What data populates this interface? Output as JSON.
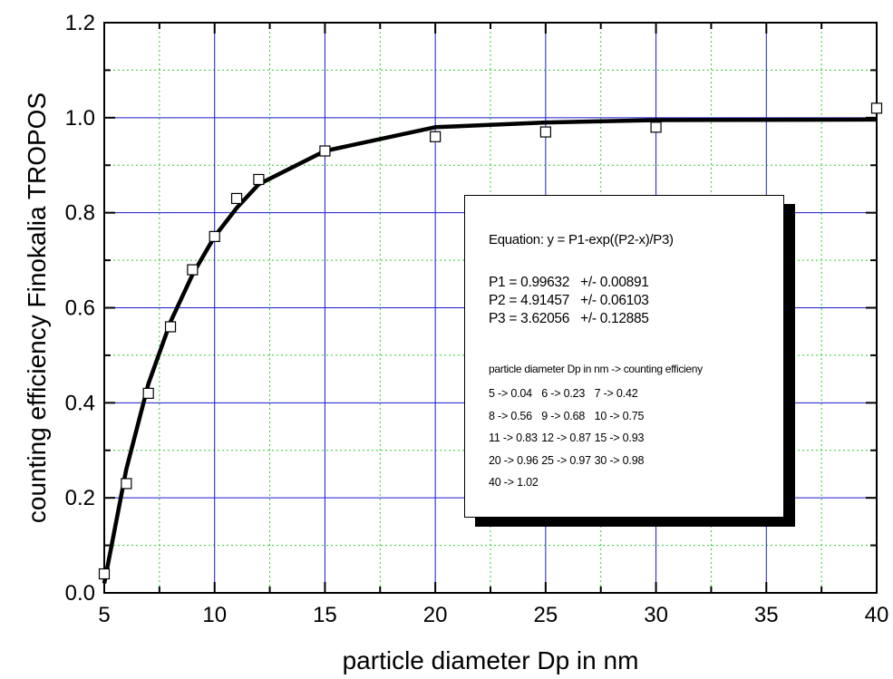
{
  "chart_data": {
    "type": "scatter",
    "xlabel": "particle diameter Dp in nm",
    "ylabel": "counting efficiency Finokalia TROPOS",
    "xlim": [
      5,
      40
    ],
    "ylim": [
      0.0,
      1.2
    ],
    "x_ticks": [
      "5",
      "10",
      "15",
      "20",
      "25",
      "30",
      "35",
      "40"
    ],
    "y_ticks": [
      "0.0",
      "0.2",
      "0.4",
      "0.6",
      "0.8",
      "1.0",
      "1.2"
    ],
    "grid": true,
    "series": [
      {
        "kind": "points",
        "marker": "open-square",
        "x": [
          5,
          6,
          7,
          8,
          9,
          10,
          11,
          12,
          15,
          20,
          25,
          30,
          40
        ],
        "y": [
          0.04,
          0.23,
          0.42,
          0.56,
          0.68,
          0.75,
          0.83,
          0.87,
          0.93,
          0.96,
          0.97,
          0.98,
          1.02
        ]
      },
      {
        "kind": "fit-line",
        "x": [
          5,
          6,
          7,
          8,
          9,
          10,
          11,
          12,
          15,
          20,
          25,
          30,
          40
        ],
        "y": [
          0.02,
          0.26,
          0.44,
          0.57,
          0.67,
          0.75,
          0.81,
          0.86,
          0.93,
          0.98,
          0.99,
          0.995,
          0.996
        ]
      }
    ],
    "annotation": {
      "equation": "Equation: y = P1-exp((P2-x)/P3)",
      "params": [
        "P1 = 0.99632   +/- 0.00891",
        "P2 = 4.91457   +/- 0.06103",
        "P3 = 3.62056   +/- 0.12885"
      ],
      "table_title": "particle diameter Dp in nm -> counting efficieny",
      "table_rows": [
        [
          "5  -> 0.04",
          "6  -> 0.23",
          "7  -> 0.42"
        ],
        [
          "8  -> 0.56",
          "9  -> 0.68",
          "10 -> 0.75"
        ],
        [
          "11 -> 0.83",
          "12 -> 0.87",
          "15 -> 0.93"
        ],
        [
          "20 -> 0.96",
          "25 -> 0.97",
          "30 -> 0.98"
        ],
        [
          "40 -> 1.02"
        ]
      ]
    }
  }
}
